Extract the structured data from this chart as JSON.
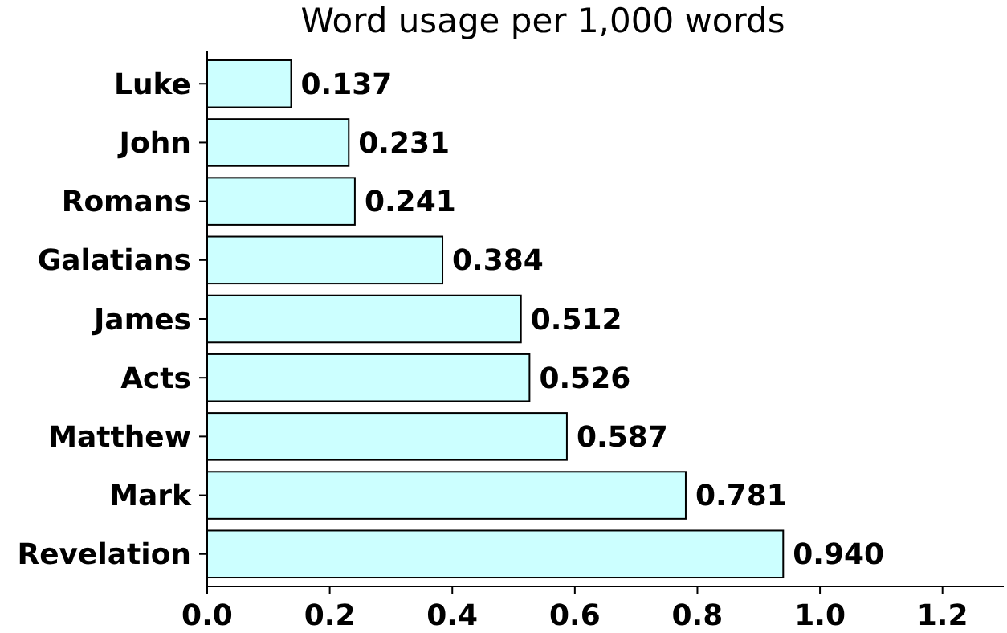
{
  "chart_data": {
    "type": "bar",
    "orientation": "horizontal",
    "title": "Word usage per 1,000 words",
    "categories": [
      "Luke",
      "John",
      "Romans",
      "Galatians",
      "James",
      "Acts",
      "Matthew",
      "Mark",
      "Revelation"
    ],
    "values": [
      0.137,
      0.231,
      0.241,
      0.384,
      0.512,
      0.526,
      0.587,
      0.781,
      0.94
    ],
    "value_labels": [
      "0.137",
      "0.231",
      "0.241",
      "0.384",
      "0.512",
      "0.526",
      "0.587",
      "0.781",
      "0.940"
    ],
    "color": "#ccffff",
    "xlim": [
      0,
      1.3
    ],
    "xticks": [
      {
        "value": 0,
        "label": "0.0"
      },
      {
        "value": 0.2,
        "label": "0.2"
      },
      {
        "value": 0.4,
        "label": "0.4"
      },
      {
        "value": 0.6,
        "label": "0.6"
      },
      {
        "value": 0.8,
        "label": "0.8"
      },
      {
        "value": 1.0,
        "label": "1.0"
      },
      {
        "value": 1.2,
        "label": "1.2"
      }
    ],
    "grid": false
  }
}
